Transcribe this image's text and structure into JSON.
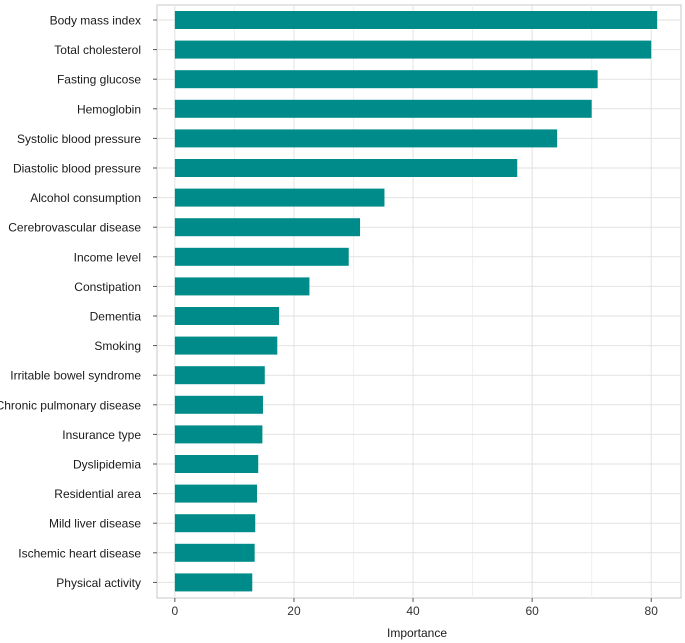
{
  "chart_data": {
    "type": "bar",
    "orientation": "horizontal",
    "title": "",
    "xlabel": "Importance",
    "ylabel": "",
    "xlim": [
      -3,
      85
    ],
    "xticks": [
      0,
      20,
      40,
      60,
      80
    ],
    "grid": true,
    "bar_color": "#008B8B",
    "categories": [
      "Body mass index",
      "Total cholesterol",
      "Fasting glucose",
      "Hemoglobin",
      "Systolic blood pressure",
      "Diastolic blood pressure",
      "Alcohol consumption",
      "Cerebrovascular disease",
      "Income level",
      "Constipation",
      "Dementia",
      "Smoking",
      "Irritable bowel syndrome",
      "Chronic pulmonary disease",
      "Insurance type",
      "Dyslipidemia",
      "Residential area",
      "Mild liver disease",
      "Ischemic heart disease",
      "Physical activity"
    ],
    "values": [
      81,
      80,
      71,
      70,
      64.2,
      57.5,
      35.2,
      31.1,
      29.2,
      22.6,
      17.5,
      17.2,
      15.1,
      14.8,
      14.7,
      14.0,
      13.8,
      13.5,
      13.4,
      13.0
    ]
  }
}
